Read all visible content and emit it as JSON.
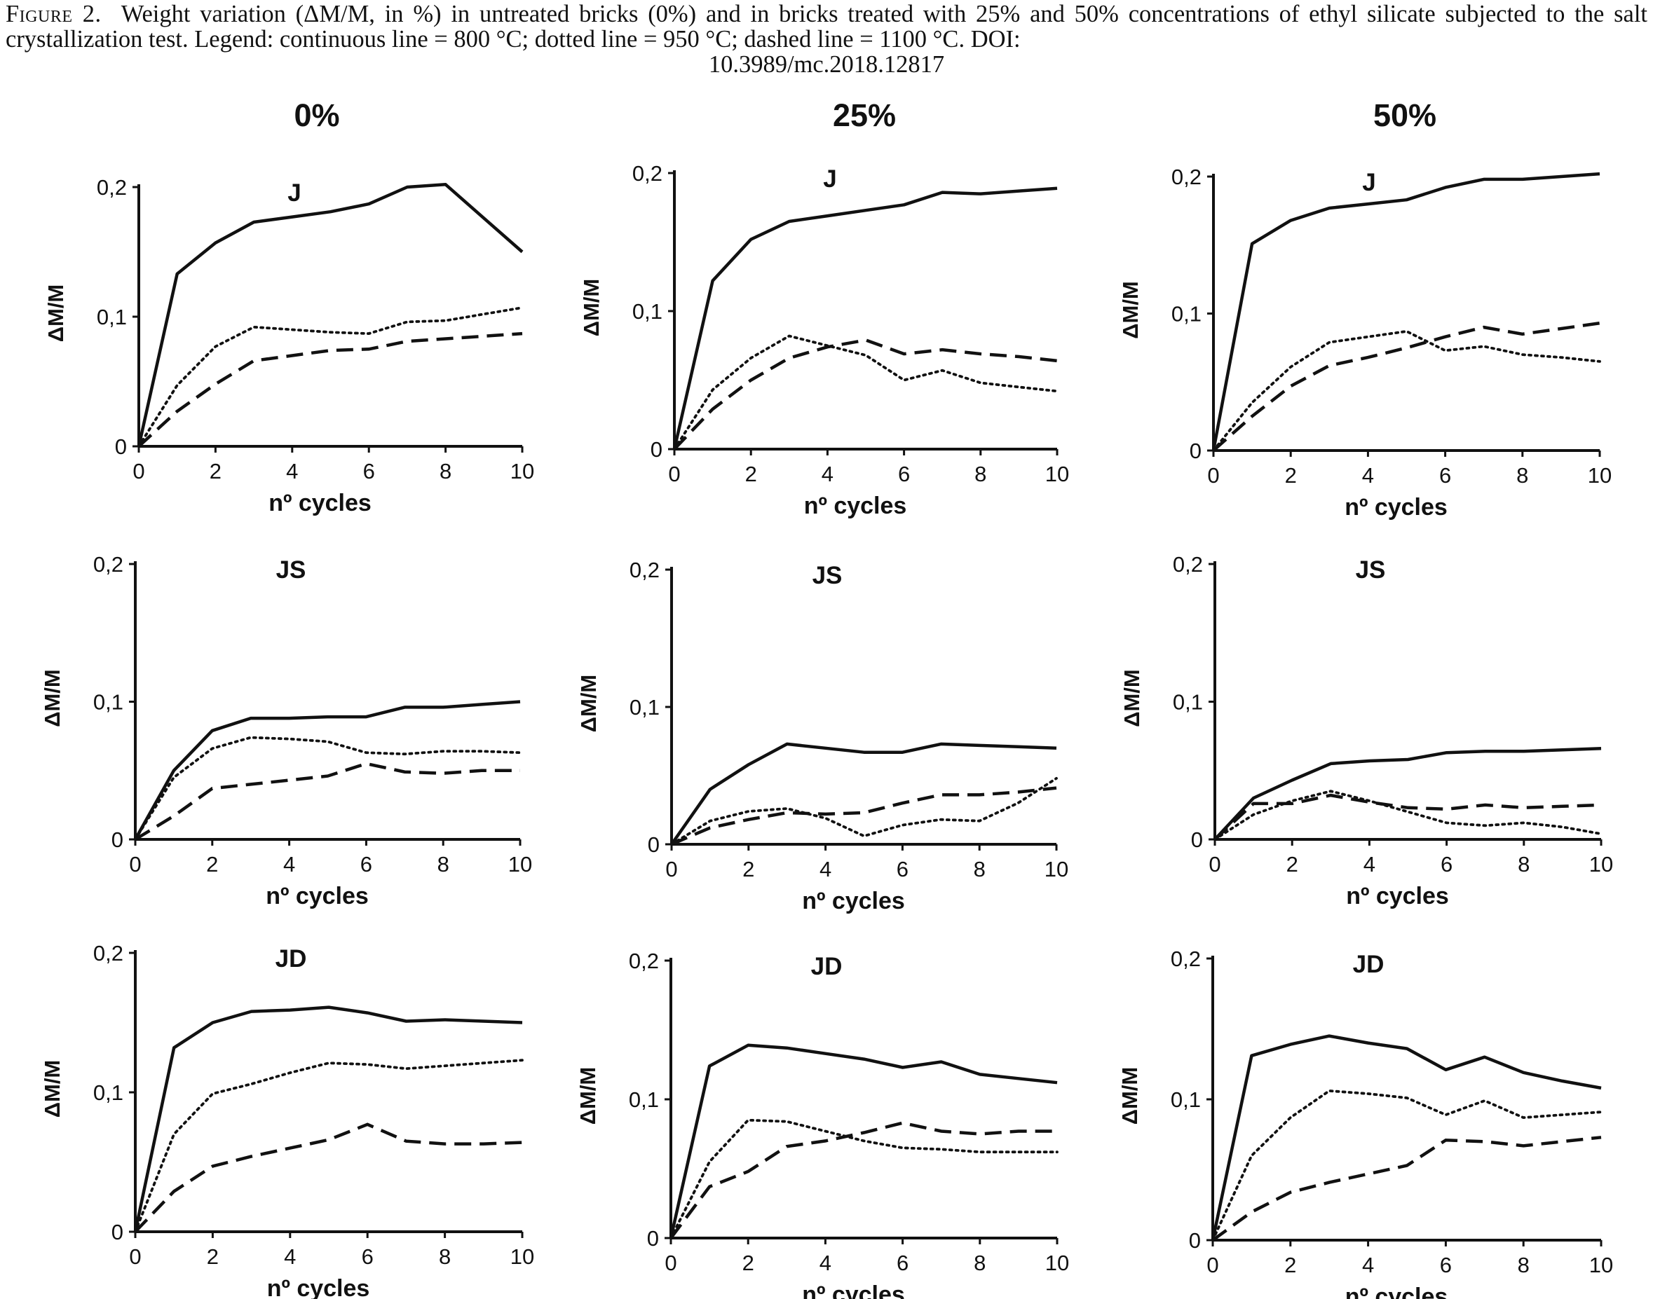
{
  "caption": {
    "figure_label": "Figure 2.",
    "line1": "Weight variation (ΔM/M, in %) in untreated bricks (0%) and in bricks treated with 25% and 50% concentrations of ethyl",
    "line2": "silicate subjected to the salt crystallization test. Legend: continuous line = 800 °C; dotted line = 950 °C; dashed line = 1100 °C. DOI:",
    "line3": "10.3989/mc.2018.12817"
  },
  "column_titles": [
    "0%",
    "25%",
    "50%"
  ],
  "line_styles": {
    "800 °C": "continuous",
    "950 °C": "dotted",
    "1100 °C": "dashed"
  },
  "chart_data": [
    {
      "type": "line",
      "title": "J",
      "column": "0%",
      "xlabel": "nº cycles",
      "ylabel": "ΔM/M",
      "xlim": [
        0,
        10
      ],
      "ylim": [
        0,
        0.2
      ],
      "x_ticks": [
        "0",
        "2",
        "4",
        "6",
        "8",
        "10"
      ],
      "y_ticks": [
        "0",
        "0,1",
        "0,2"
      ],
      "x": [
        0,
        1,
        2,
        3,
        4,
        5,
        6,
        7,
        8,
        9,
        10
      ],
      "series": [
        {
          "style": "continuous",
          "values": [
            0,
            0.133,
            0.157,
            0.173,
            0.177,
            0.181,
            0.187,
            0.2,
            0.202,
            0.176,
            0.15
          ]
        },
        {
          "style": "dotted",
          "values": [
            0,
            0.047,
            0.077,
            0.092,
            0.09,
            0.088,
            0.087,
            0.096,
            0.097,
            0.102,
            0.107
          ]
        },
        {
          "style": "dashed",
          "values": [
            0,
            0.027,
            0.048,
            0.066,
            0.07,
            0.074,
            0.075,
            0.081,
            0.083,
            0.085,
            0.087
          ]
        }
      ]
    },
    {
      "type": "line",
      "title": "J",
      "column": "25%",
      "xlabel": "nº cycles",
      "ylabel": "ΔM/M",
      "xlim": [
        0,
        10
      ],
      "ylim": [
        0,
        0.2
      ],
      "x_ticks": [
        "0",
        "2",
        "4",
        "6",
        "8",
        "10"
      ],
      "y_ticks": [
        "0",
        "0,1",
        "0,2"
      ],
      "x": [
        0,
        1,
        2,
        3,
        4,
        5,
        6,
        7,
        8,
        9,
        10
      ],
      "series": [
        {
          "style": "continuous",
          "values": [
            0,
            0.122,
            0.152,
            0.165,
            0.169,
            0.173,
            0.177,
            0.186,
            0.185,
            0.187,
            0.189
          ]
        },
        {
          "style": "dotted",
          "values": [
            0,
            0.043,
            0.066,
            0.082,
            0.075,
            0.068,
            0.05,
            0.057,
            0.048,
            0.045,
            0.042
          ]
        },
        {
          "style": "dashed",
          "values": [
            0,
            0.029,
            0.05,
            0.066,
            0.074,
            0.079,
            0.069,
            0.072,
            0.069,
            0.067,
            0.064
          ]
        }
      ]
    },
    {
      "type": "line",
      "title": "J",
      "column": "50%",
      "xlabel": "nº cycles",
      "ylabel": "ΔM/M",
      "xlim": [
        0,
        10
      ],
      "ylim": [
        0,
        0.2
      ],
      "x_ticks": [
        "0",
        "2",
        "4",
        "6",
        "8",
        "10"
      ],
      "y_ticks": [
        "0",
        "0,1",
        "0,2"
      ],
      "x": [
        0,
        1,
        2,
        3,
        4,
        5,
        6,
        7,
        8,
        9,
        10
      ],
      "series": [
        {
          "style": "continuous",
          "values": [
            0,
            0.151,
            0.168,
            0.177,
            0.18,
            0.183,
            0.192,
            0.198,
            0.198,
            0.2,
            0.202
          ]
        },
        {
          "style": "dotted",
          "values": [
            0,
            0.035,
            0.061,
            0.079,
            0.083,
            0.087,
            0.073,
            0.076,
            0.07,
            0.068,
            0.065
          ]
        },
        {
          "style": "dashed",
          "values": [
            0,
            0.025,
            0.047,
            0.062,
            0.068,
            0.075,
            0.083,
            0.09,
            0.085,
            0.089,
            0.093
          ]
        }
      ]
    },
    {
      "type": "line",
      "title": "JS",
      "column": "0%",
      "xlabel": "nº cycles",
      "ylabel": "ΔM/M",
      "xlim": [
        0,
        10
      ],
      "ylim": [
        0,
        0.2
      ],
      "x_ticks": [
        "0",
        "2",
        "4",
        "6",
        "8",
        "10"
      ],
      "y_ticks": [
        "0",
        "0,1",
        "0,2"
      ],
      "x": [
        0,
        1,
        2,
        3,
        4,
        5,
        6,
        7,
        8,
        9,
        10
      ],
      "series": [
        {
          "style": "continuous",
          "values": [
            0,
            0.05,
            0.079,
            0.088,
            0.088,
            0.089,
            0.089,
            0.096,
            0.096,
            0.098,
            0.1
          ]
        },
        {
          "style": "dotted",
          "values": [
            0,
            0.045,
            0.066,
            0.074,
            0.073,
            0.071,
            0.063,
            0.062,
            0.064,
            0.064,
            0.063
          ]
        },
        {
          "style": "dashed",
          "values": [
            0,
            0.017,
            0.037,
            0.04,
            0.043,
            0.046,
            0.055,
            0.049,
            0.048,
            0.05,
            0.05
          ]
        }
      ]
    },
    {
      "type": "line",
      "title": "JS",
      "column": "25%",
      "xlabel": "nº cycles",
      "ylabel": "ΔM/M",
      "xlim": [
        0,
        10
      ],
      "ylim": [
        0,
        0.2
      ],
      "x_ticks": [
        "0",
        "2",
        "4",
        "6",
        "8",
        "10"
      ],
      "y_ticks": [
        "0",
        "0,1",
        "0,2"
      ],
      "x": [
        0,
        1,
        2,
        3,
        4,
        5,
        6,
        7,
        8,
        9,
        10
      ],
      "series": [
        {
          "style": "continuous",
          "values": [
            0,
            0.04,
            0.058,
            0.073,
            0.07,
            0.067,
            0.067,
            0.073,
            0.072,
            0.071,
            0.07
          ]
        },
        {
          "style": "dotted",
          "values": [
            0,
            0.017,
            0.024,
            0.026,
            0.019,
            0.006,
            0.014,
            0.018,
            0.017,
            0.03,
            0.048
          ]
        },
        {
          "style": "dashed",
          "values": [
            0,
            0.012,
            0.018,
            0.023,
            0.022,
            0.023,
            0.03,
            0.036,
            0.036,
            0.038,
            0.041
          ]
        }
      ]
    },
    {
      "type": "line",
      "title": "JS",
      "column": "50%",
      "xlabel": "nº cycles",
      "ylabel": "ΔM/M",
      "xlim": [
        0,
        10
      ],
      "ylim": [
        0,
        0.2
      ],
      "x_ticks": [
        "0",
        "2",
        "4",
        "6",
        "8",
        "10"
      ],
      "y_ticks": [
        "0",
        "0,1",
        "0,2"
      ],
      "x": [
        0,
        1,
        2,
        3,
        4,
        5,
        6,
        7,
        8,
        9,
        10
      ],
      "series": [
        {
          "style": "continuous",
          "values": [
            0,
            0.03,
            0.043,
            0.055,
            0.057,
            0.058,
            0.063,
            0.064,
            0.064,
            0.065,
            0.066
          ]
        },
        {
          "style": "dotted",
          "values": [
            0,
            0.018,
            0.028,
            0.035,
            0.028,
            0.02,
            0.012,
            0.01,
            0.012,
            0.009,
            0.004
          ]
        },
        {
          "style": "dashed",
          "values": [
            0,
            0.026,
            0.026,
            0.032,
            0.027,
            0.023,
            0.022,
            0.025,
            0.023,
            0.024,
            0.025
          ]
        }
      ]
    },
    {
      "type": "line",
      "title": "JD",
      "column": "0%",
      "xlabel": "nº cycles",
      "ylabel": "ΔM/M",
      "xlim": [
        0,
        10
      ],
      "ylim": [
        0,
        0.2
      ],
      "x_ticks": [
        "0",
        "2",
        "4",
        "6",
        "8",
        "10"
      ],
      "y_ticks": [
        "0",
        "0,1",
        "0,2"
      ],
      "x": [
        0,
        1,
        2,
        3,
        4,
        5,
        6,
        7,
        8,
        9,
        10
      ],
      "series": [
        {
          "style": "continuous",
          "values": [
            0,
            0.132,
            0.15,
            0.158,
            0.159,
            0.161,
            0.157,
            0.151,
            0.152,
            0.151,
            0.15
          ]
        },
        {
          "style": "dotted",
          "values": [
            0,
            0.07,
            0.099,
            0.106,
            0.114,
            0.121,
            0.12,
            0.117,
            0.119,
            0.121,
            0.123
          ]
        },
        {
          "style": "dashed",
          "values": [
            0,
            0.029,
            0.047,
            0.054,
            0.06,
            0.066,
            0.077,
            0.065,
            0.063,
            0.063,
            0.064
          ]
        }
      ]
    },
    {
      "type": "line",
      "title": "JD",
      "column": "25%",
      "xlabel": "nº cycles",
      "ylabel": "ΔM/M",
      "xlim": [
        0,
        10
      ],
      "ylim": [
        0,
        0.2
      ],
      "x_ticks": [
        "0",
        "2",
        "4",
        "6",
        "8",
        "10"
      ],
      "y_ticks": [
        "0",
        "0,1",
        "0,2"
      ],
      "x": [
        0,
        1,
        2,
        3,
        4,
        5,
        6,
        7,
        8,
        9,
        10
      ],
      "series": [
        {
          "style": "continuous",
          "values": [
            0,
            0.124,
            0.139,
            0.137,
            0.133,
            0.129,
            0.123,
            0.127,
            0.118,
            0.115,
            0.112
          ]
        },
        {
          "style": "dotted",
          "values": [
            0,
            0.055,
            0.085,
            0.084,
            0.077,
            0.07,
            0.065,
            0.064,
            0.062,
            0.062,
            0.062
          ]
        },
        {
          "style": "dashed",
          "values": [
            0,
            0.037,
            0.048,
            0.066,
            0.07,
            0.076,
            0.083,
            0.077,
            0.075,
            0.077,
            0.077
          ]
        }
      ]
    },
    {
      "type": "line",
      "title": "JD",
      "column": "50%",
      "xlabel": "nº cycles",
      "ylabel": "ΔM/M",
      "xlim": [
        0,
        10
      ],
      "ylim": [
        0,
        0.2
      ],
      "x_ticks": [
        "0",
        "2",
        "4",
        "6",
        "8",
        "10"
      ],
      "y_ticks": [
        "0",
        "0,1",
        "0,2"
      ],
      "x": [
        0,
        1,
        2,
        3,
        4,
        5,
        6,
        7,
        8,
        9,
        10
      ],
      "series": [
        {
          "style": "continuous",
          "values": [
            0,
            0.131,
            0.139,
            0.145,
            0.14,
            0.136,
            0.121,
            0.13,
            0.119,
            0.113,
            0.108
          ]
        },
        {
          "style": "dotted",
          "values": [
            0,
            0.06,
            0.087,
            0.106,
            0.104,
            0.101,
            0.089,
            0.099,
            0.087,
            0.089,
            0.091
          ]
        },
        {
          "style": "dashed",
          "values": [
            0,
            0.02,
            0.034,
            0.041,
            0.047,
            0.053,
            0.071,
            0.07,
            0.067,
            0.07,
            0.073
          ]
        }
      ]
    }
  ]
}
